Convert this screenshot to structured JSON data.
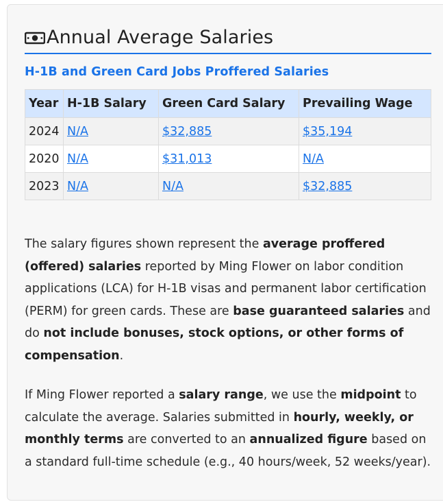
{
  "section": {
    "icon": "money-bill-icon",
    "title": "Annual Average Salaries",
    "subtitle": "H-1B and Green Card Jobs Proffered Salaries"
  },
  "table": {
    "headers": [
      "Year",
      "H-1B Salary",
      "Green Card Salary",
      "Prevailing Wage"
    ],
    "rows": [
      {
        "year": "2024",
        "h1b": "N/A",
        "green_card": "$32,885",
        "prevailing": "$35,194"
      },
      {
        "year": "2020",
        "h1b": "N/A",
        "green_card": "$31,013",
        "prevailing": "N/A"
      },
      {
        "year": "2023",
        "h1b": "N/A",
        "green_card": "N/A",
        "prevailing": "$32,885"
      }
    ]
  },
  "paragraph1": {
    "t1": "The salary figures shown represent the ",
    "b1": "average proffered (offered) salaries",
    "t2": " reported by Ming Flower on labor condition applications (LCA) for H-1B visas and permanent labor certification (PERM) for green cards. These are ",
    "b2": "base guaranteed salaries",
    "t3": " and do ",
    "b3": "not include bonuses, stock options, or other forms of compensation",
    "t4": "."
  },
  "paragraph2": {
    "t1": "If Ming Flower reported a ",
    "b1": "salary range",
    "t2": ", we use the ",
    "b2": "midpoint",
    "t3": " to calculate the average. Salaries submitted in ",
    "b3": "hourly, weekly, or monthly terms",
    "t4": " are converted to an ",
    "b4": "annualized figure",
    "t5": " based on a standard full-time schedule (e.g., 40 hours/week, 52 weeks/year)."
  },
  "colors": {
    "accent": "#1a73e8",
    "header_bg": "#d4e6ff",
    "card_bg": "#f7f7f7"
  }
}
